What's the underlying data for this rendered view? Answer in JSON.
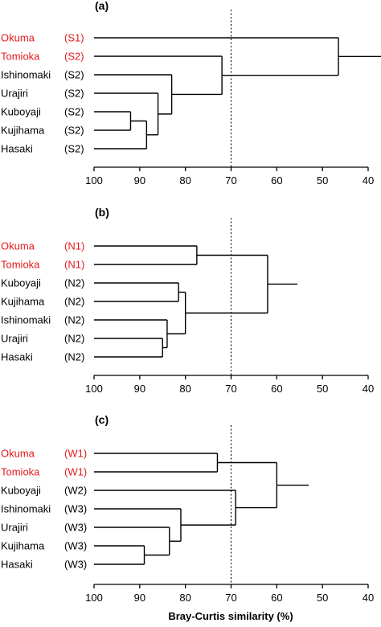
{
  "figure": {
    "xlabel": "Bray-Curtis similarity (%)"
  },
  "colors": {
    "highlight": "#e31a1c",
    "normal": "#000000",
    "line": "#000000",
    "reference_line": "#000000"
  },
  "chart_data": [
    {
      "type": "dendrogram",
      "panel": "(a)",
      "xlabel": "Bray-Curtis similarity (%)",
      "xlim": [
        100,
        40
      ],
      "xticks": [
        100,
        90,
        80,
        70,
        60,
        50,
        40
      ],
      "reference_line": 70,
      "leaves": [
        {
          "name": "Okuma",
          "group": "(S1)",
          "highlight": true
        },
        {
          "name": "Tomioka",
          "group": "(S2)",
          "highlight": true
        },
        {
          "name": "Ishinomaki",
          "group": "(S2)",
          "highlight": false
        },
        {
          "name": "Urajiri",
          "group": "(S2)",
          "highlight": false
        },
        {
          "name": "Kuboyaji",
          "group": "(S2)",
          "highlight": false
        },
        {
          "name": "Kujihama",
          "group": "(S2)",
          "highlight": false
        },
        {
          "name": "Hasaki",
          "group": "(S2)",
          "highlight": false
        }
      ],
      "merges": [
        {
          "a": 4,
          "b": 5,
          "similarity": 92
        },
        {
          "a": 7,
          "b": 6,
          "similarity": 88.5
        },
        {
          "a": 3,
          "b": 8,
          "similarity": 86
        },
        {
          "a": 2,
          "b": 9,
          "similarity": 83
        },
        {
          "a": 1,
          "b": 10,
          "similarity": 72
        },
        {
          "a": 0,
          "b": 11,
          "similarity": 46.5
        }
      ],
      "root_extent": 37
    },
    {
      "type": "dendrogram",
      "panel": "(b)",
      "xlabel": "",
      "xlim": [
        100,
        40
      ],
      "xticks": [
        100,
        90,
        80,
        70,
        60,
        50,
        40
      ],
      "reference_line": 70,
      "leaves": [
        {
          "name": "Okuma",
          "group": "(N1)",
          "highlight": true
        },
        {
          "name": "Tomioka",
          "group": "(N1)",
          "highlight": true
        },
        {
          "name": "Kuboyaji",
          "group": "(N2)",
          "highlight": false
        },
        {
          "name": "Kujihama",
          "group": "(N2)",
          "highlight": false
        },
        {
          "name": "Ishinomaki",
          "group": "(N2)",
          "highlight": false
        },
        {
          "name": "Urajiri",
          "group": "(N2)",
          "highlight": false
        },
        {
          "name": "Hasaki",
          "group": "(N2)",
          "highlight": false
        }
      ],
      "merges": [
        {
          "a": 5,
          "b": 6,
          "similarity": 85
        },
        {
          "a": 4,
          "b": 7,
          "similarity": 84
        },
        {
          "a": 2,
          "b": 3,
          "similarity": 81.5
        },
        {
          "a": 9,
          "b": 8,
          "similarity": 80
        },
        {
          "a": 0,
          "b": 1,
          "similarity": 77.5
        },
        {
          "a": 11,
          "b": 10,
          "similarity": 62
        }
      ],
      "root_extent": 55.5
    },
    {
      "type": "dendrogram",
      "panel": "(c)",
      "xlabel": "Bray-Curtis similarity (%)",
      "xlim": [
        100,
        40
      ],
      "xticks": [
        100,
        90,
        80,
        70,
        60,
        50,
        40
      ],
      "reference_line": 70,
      "leaves": [
        {
          "name": "Okuma",
          "group": "(W1)",
          "highlight": true
        },
        {
          "name": "Tomioka",
          "group": "(W1)",
          "highlight": true
        },
        {
          "name": "Kuboyaji",
          "group": "(W2)",
          "highlight": false
        },
        {
          "name": "Ishinomaki",
          "group": "(W3)",
          "highlight": false
        },
        {
          "name": "Urajiri",
          "group": "(W3)",
          "highlight": false
        },
        {
          "name": "Kujihama",
          "group": "(W3)",
          "highlight": false
        },
        {
          "name": "Hasaki",
          "group": "(W3)",
          "highlight": false
        }
      ],
      "merges": [
        {
          "a": 5,
          "b": 6,
          "similarity": 89
        },
        {
          "a": 4,
          "b": 7,
          "similarity": 83.5
        },
        {
          "a": 3,
          "b": 8,
          "similarity": 81
        },
        {
          "a": 0,
          "b": 1,
          "similarity": 73
        },
        {
          "a": 2,
          "b": 9,
          "similarity": 69
        },
        {
          "a": 10,
          "b": 11,
          "similarity": 60
        }
      ],
      "root_extent": 53
    }
  ]
}
